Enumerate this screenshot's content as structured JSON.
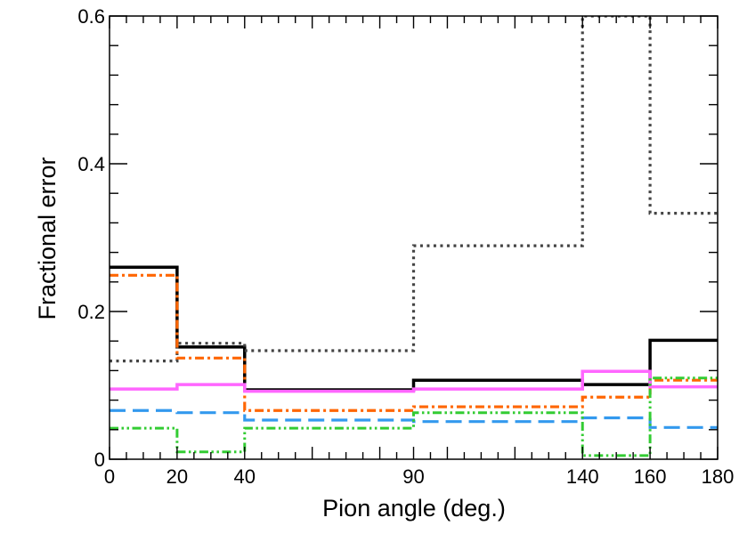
{
  "chart_data": {
    "type": "line",
    "xlabel": "Pion angle (deg.)",
    "ylabel": "Fractional error",
    "xlim": [
      0,
      180
    ],
    "ylim": [
      0,
      0.6
    ],
    "x_ticks": [
      0,
      20,
      40,
      90,
      140,
      160,
      180
    ],
    "y_ticks": [
      0,
      0.2,
      0.4,
      0.6
    ],
    "y_tick_labels": [
      "0",
      "0.2",
      "0.4",
      "0.6"
    ],
    "grid": false,
    "bin_edges": [
      0,
      20,
      40,
      90,
      140,
      160,
      180
    ],
    "series": [
      {
        "color": "#000000",
        "style": "solid",
        "values": [
          0.26,
          0.152,
          0.094,
          0.107,
          0.101,
          0.161
        ]
      },
      {
        "color": "#444444",
        "style": "dotted",
        "values": [
          0.133,
          0.157,
          0.147,
          0.289,
          0.6,
          0.333
        ]
      },
      {
        "color": "#ff6600",
        "style": "dashdot",
        "values": [
          0.249,
          0.137,
          0.066,
          0.071,
          0.084,
          0.107
        ]
      },
      {
        "color": "#ff66ff",
        "style": "solid",
        "values": [
          0.095,
          0.101,
          0.092,
          0.095,
          0.119,
          0.098
        ]
      },
      {
        "color": "#3399ee",
        "style": "dashed",
        "values": [
          0.066,
          0.063,
          0.053,
          0.051,
          0.056,
          0.043
        ]
      },
      {
        "color": "#33cc33",
        "style": "dashdotdot",
        "values": [
          0.042,
          0.01,
          0.042,
          0.063,
          0.005,
          0.11
        ]
      }
    ]
  }
}
